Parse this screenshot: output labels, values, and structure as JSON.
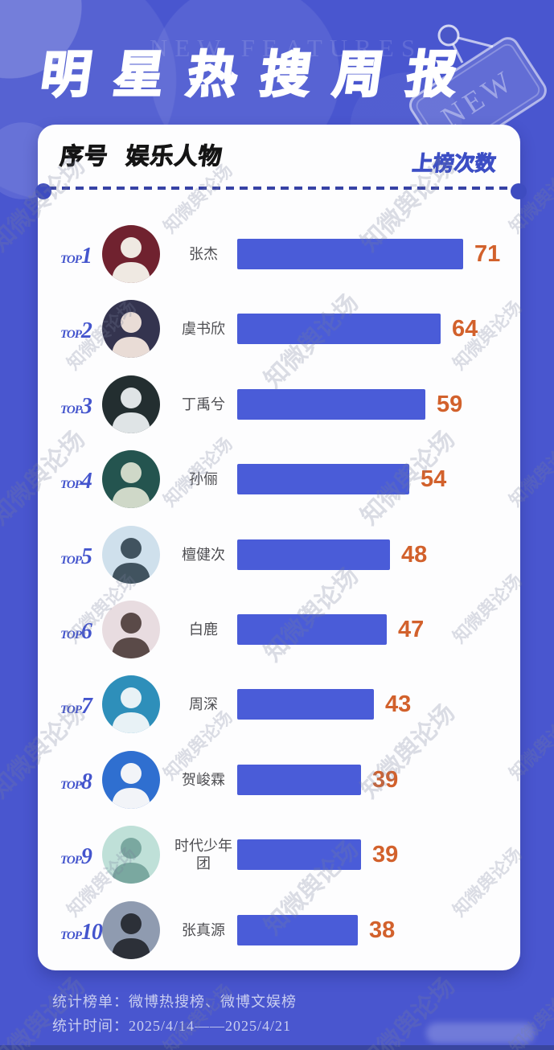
{
  "header": {
    "title": "明星热搜周报",
    "background_text": "NEW FEATURES",
    "tag_label": "NEW"
  },
  "table": {
    "rank_header": "序号",
    "name_header": "娱乐人物",
    "count_header": "上榜次数"
  },
  "ranking": [
    {
      "rank_prefix": "TOP",
      "rank": "1",
      "name": "张杰",
      "value": 71,
      "avatar_bg": "#70222f",
      "avatar_fg": "#efe9e2"
    },
    {
      "rank_prefix": "TOP",
      "rank": "2",
      "name": "虞书欣",
      "value": 64,
      "avatar_bg": "#34344f",
      "avatar_fg": "#e9dcd6"
    },
    {
      "rank_prefix": "TOP",
      "rank": "3",
      "name": "丁禹兮",
      "value": 59,
      "avatar_bg": "#232e30",
      "avatar_fg": "#dfe4e6"
    },
    {
      "rank_prefix": "TOP",
      "rank": "4",
      "name": "孙俪",
      "value": 54,
      "avatar_bg": "#24544f",
      "avatar_fg": "#cfd8c8"
    },
    {
      "rank_prefix": "TOP",
      "rank": "5",
      "name": "檀健次",
      "value": 48,
      "avatar_bg": "#cfe0ec",
      "avatar_fg": "#41535f"
    },
    {
      "rank_prefix": "TOP",
      "rank": "6",
      "name": "白鹿",
      "value": 47,
      "avatar_bg": "#e8dce0",
      "avatar_fg": "#5a4a48"
    },
    {
      "rank_prefix": "TOP",
      "rank": "7",
      "name": "周深",
      "value": 43,
      "avatar_bg": "#2e8fba",
      "avatar_fg": "#e8f2f6"
    },
    {
      "rank_prefix": "TOP",
      "rank": "8",
      "name": "贺峻霖",
      "value": 39,
      "avatar_bg": "#2f6fd0",
      "avatar_fg": "#f2f4f8"
    },
    {
      "rank_prefix": "TOP",
      "rank": "9",
      "name": "时代少年团",
      "value": 39,
      "avatar_bg": "#bfe0d8",
      "avatar_fg": "#7aa8a0"
    },
    {
      "rank_prefix": "TOP",
      "rank": "10",
      "name": "张真源",
      "value": 38,
      "avatar_bg": "#8f9bb0",
      "avatar_fg": "#2c3038"
    }
  ],
  "footer": {
    "source_line": "统计榜单：微博热搜榜、微博文娱榜",
    "time_line": "统计时间：2025/4/14——2025/4/21"
  },
  "watermark_text": "知微舆论场",
  "colors": {
    "background": "#4956cf",
    "bar": "#4a5cd8",
    "value_orange": "#d2612c",
    "count_header_blue": "#3c4ec5",
    "top_label_blue": "#4455cd"
  },
  "chart_data": {
    "type": "bar",
    "orientation": "horizontal",
    "title": "明星热搜周报",
    "categories": [
      "张杰",
      "虞书欣",
      "丁禹兮",
      "孙俪",
      "檀健次",
      "白鹿",
      "周深",
      "贺峻霖",
      "时代少年团",
      "张真源"
    ],
    "values": [
      71,
      64,
      59,
      54,
      48,
      47,
      43,
      39,
      39,
      38
    ],
    "value_label": "上榜次数",
    "rank_labels": [
      "TOP1",
      "TOP2",
      "TOP3",
      "TOP4",
      "TOP5",
      "TOP6",
      "TOP7",
      "TOP8",
      "TOP9",
      "TOP10"
    ],
    "xlim": [
      0,
      71
    ],
    "source": "统计榜单：微博热搜榜、微博文娱榜",
    "period": "统计时间：2025/4/14——2025/4/21"
  }
}
